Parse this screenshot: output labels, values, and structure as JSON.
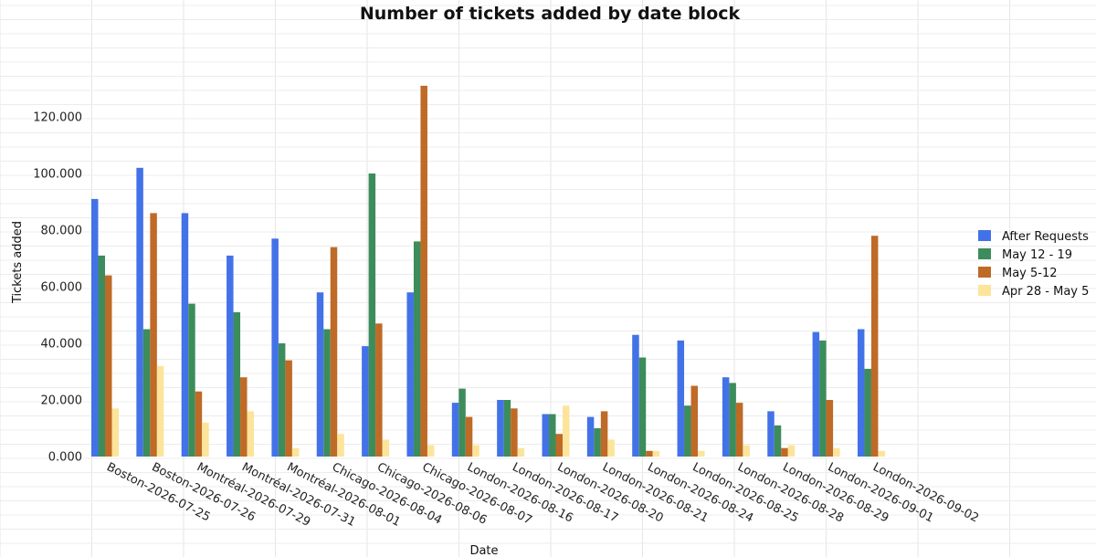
{
  "chart_data": {
    "type": "bar",
    "title": "Number of tickets added by date block",
    "xlabel": "Date",
    "ylabel": "Tickets added",
    "ylim": [
      0,
      140000
    ],
    "yticks": [
      0,
      20000,
      40000,
      60000,
      80000,
      100000,
      120000
    ],
    "ytick_labels": [
      "0.000",
      "20.000",
      "40.000",
      "60.000",
      "80.000",
      "100.000",
      "120.000"
    ],
    "grid": true,
    "legend_position": "right",
    "categories": [
      "Boston-2026-07-25",
      "Boston-2026-07-26",
      "Montréal-2026-07-29",
      "Montréal-2026-07-31",
      "Montréal-2026-08-01",
      "Chicago-2026-08-04",
      "Chicago-2026-08-06",
      "Chicago-2026-08-07",
      "London-2026-08-16",
      "London-2026-08-17",
      "London-2026-08-20",
      "London-2026-08-21",
      "London-2026-08-24",
      "London-2026-08-25",
      "London-2026-08-28",
      "London-2026-08-29",
      "London-2026-09-01",
      "London-2026-09-02"
    ],
    "series": [
      {
        "name": "After Requests",
        "color": "#4372e8",
        "values": [
          91000,
          102000,
          86000,
          71000,
          77000,
          58000,
          39000,
          58000,
          19000,
          20000,
          15000,
          14000,
          43000,
          41000,
          28000,
          16000,
          44000,
          45000
        ]
      },
      {
        "name": "May 12 - 19",
        "color": "#3d8c5c",
        "values": [
          71000,
          45000,
          54000,
          51000,
          40000,
          45000,
          100000,
          76000,
          24000,
          20000,
          15000,
          10000,
          35000,
          18000,
          26000,
          11000,
          41000,
          31000
        ]
      },
      {
        "name": "May 5-12",
        "color": "#bf6a26",
        "values": [
          64000,
          86000,
          23000,
          28000,
          34000,
          74000,
          47000,
          131000,
          14000,
          17000,
          8000,
          16000,
          2000,
          25000,
          19000,
          3000,
          20000,
          78000
        ]
      },
      {
        "name": "Apr 28 - May 5",
        "color": "#fce49b",
        "values": [
          17000,
          32000,
          12000,
          16000,
          3000,
          8000,
          6000,
          4000,
          4000,
          3000,
          18000,
          6000,
          2000,
          2000,
          4000,
          4000,
          3000,
          2000
        ]
      }
    ]
  }
}
